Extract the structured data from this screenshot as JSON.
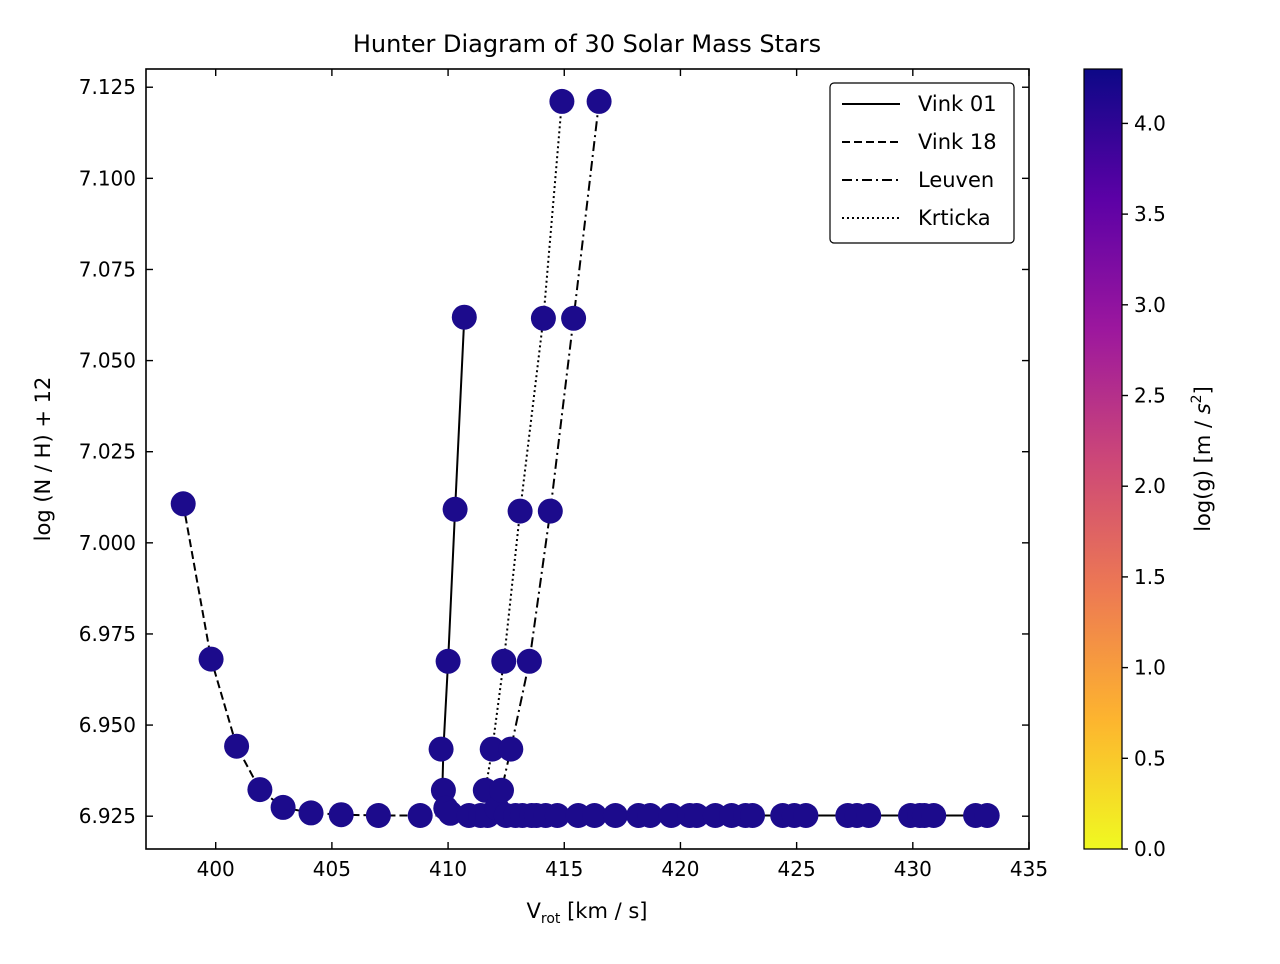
{
  "chart_data": {
    "type": "scatter",
    "title": "Hunter Diagram of 30 Solar Mass Stars",
    "xlabel_main": "V",
    "xlabel_sub": "rot",
    "xlabel_unit": " [km / s]",
    "ylabel": "log (N / H) + 12",
    "xlim": [
      397,
      435
    ],
    "ylim": [
      6.916,
      7.13
    ],
    "x_ticks": [
      "400",
      "405",
      "410",
      "415",
      "420",
      "425",
      "430",
      "435"
    ],
    "y_ticks": [
      "6.925",
      "6.950",
      "6.975",
      "7.000",
      "7.025",
      "7.050",
      "7.075",
      "7.100",
      "7.125"
    ],
    "grid": false,
    "legend_position": "top-right",
    "marker_color": "#1c0b8c",
    "colorbar": {
      "label": "log(g) [m / s²]",
      "label_main": "log(g) [m / ",
      "label_s": "s",
      "label_exp": "2",
      "label_end": "]",
      "range": [
        0,
        4.3
      ],
      "ticks": [
        "0.0",
        "0.5",
        "1.0",
        "1.5",
        "2.0",
        "2.5",
        "3.0",
        "3.5",
        "4.0"
      ],
      "colormap": "plasma",
      "stops": [
        "#f0f921",
        "#fdb42f",
        "#ed7953",
        "#cc4778",
        "#9c179e",
        "#5c01a6",
        "#0d0887"
      ]
    },
    "series": [
      {
        "name": "Vink 01",
        "linestyle": "solid",
        "x": [
          410.7,
          410.3,
          410.0,
          409.8,
          409.75,
          409.9,
          410.1,
          410.5,
          411.0,
          411.8,
          412.8,
          414.0,
          415.5,
          417.5,
          420.0,
          423.0,
          426.0,
          429.0,
          431.5,
          433.3
        ],
        "y": [
          7.0619,
          7.0092,
          6.9675,
          6.9434,
          6.9321,
          6.9272,
          6.9258,
          6.9253,
          6.9252,
          6.9252,
          6.9252,
          6.9252,
          6.9252,
          6.9252,
          6.9252,
          6.9252,
          6.9252,
          6.9252,
          6.9252,
          6.9252
        ]
      },
      {
        "name": "Vink 18",
        "linestyle": "dashed",
        "x": [
          398.6,
          399.8,
          400.9,
          401.9,
          402.9,
          404.1,
          405.4,
          407.0,
          408.8,
          410.5,
          412.0
        ],
        "y": [
          7.0107,
          6.9681,
          6.9442,
          6.9323,
          6.9274,
          6.9259,
          6.9254,
          6.9252,
          6.9252,
          6.9252,
          6.9252
        ]
      },
      {
        "name": "Leuven",
        "linestyle": "dashdot",
        "x": [
          416.5,
          415.4,
          414.4,
          413.5,
          412.7,
          412.3,
          412.5,
          413.0,
          414.0,
          415.5,
          417.5,
          420.0,
          423.0,
          426.0,
          429.0,
          431.5,
          433.3
        ],
        "y": [
          7.1211,
          7.0616,
          7.0087,
          6.9675,
          6.9434,
          6.9321,
          6.9272,
          6.9256,
          6.9252,
          6.9252,
          6.9252,
          6.9252,
          6.9252,
          6.9252,
          6.9252,
          6.9252,
          6.9252
        ]
      },
      {
        "name": "Krticka",
        "linestyle": "dotted",
        "x": [
          414.9,
          414.1,
          413.1,
          412.4,
          411.9,
          411.6,
          411.7,
          412.2,
          413.0
        ],
        "y": [
          7.1211,
          7.0616,
          7.0087,
          6.9675,
          6.9434,
          6.9321,
          6.9272,
          6.9256,
          6.9252
        ]
      }
    ],
    "points": {
      "x": [
        398.6,
        399.8,
        400.9,
        401.9,
        402.9,
        404.1,
        405.4,
        407.0,
        408.8,
        409.7,
        409.8,
        409.9,
        410.0,
        410.1,
        410.3,
        410.7,
        410.9,
        411.4,
        411.6,
        411.7,
        411.9,
        412.1,
        412.3,
        412.4,
        412.5,
        412.7,
        412.9,
        413.1,
        413.2,
        413.5,
        413.6,
        413.8,
        414.1,
        414.2,
        414.4,
        414.7,
        414.9,
        415.4,
        415.6,
        416.3,
        416.5,
        417.2,
        418.2,
        418.7,
        419.6,
        420.4,
        420.7,
        421.5,
        422.2,
        422.8,
        423.1,
        424.4,
        424.9,
        425.4,
        427.2,
        427.6,
        428.1,
        429.9,
        430.3,
        430.5,
        430.9,
        432.7,
        433.2
      ],
      "y": [
        7.0107,
        6.9681,
        6.9442,
        6.9323,
        6.9274,
        6.9259,
        6.9254,
        6.9252,
        6.9252,
        6.9434,
        6.9321,
        6.9272,
        6.9675,
        6.9258,
        7.0092,
        7.0619,
        6.9252,
        6.9252,
        6.9321,
        6.9252,
        6.9434,
        6.9272,
        6.9321,
        6.9675,
        6.9252,
        6.9434,
        6.9252,
        7.0087,
        6.9252,
        6.9675,
        6.9252,
        6.9252,
        7.0616,
        6.9252,
        7.0087,
        6.9252,
        7.1211,
        7.0616,
        6.9252,
        6.9252,
        7.1211,
        6.9252,
        6.9252,
        6.9252,
        6.9252,
        6.9252,
        6.9252,
        6.9252,
        6.9252,
        6.9252,
        6.9252,
        6.9252,
        6.9252,
        6.9252,
        6.9252,
        6.9252,
        6.9252,
        6.9252,
        6.9252,
        6.9252,
        6.9252,
        6.9252,
        6.9252
      ]
    }
  }
}
